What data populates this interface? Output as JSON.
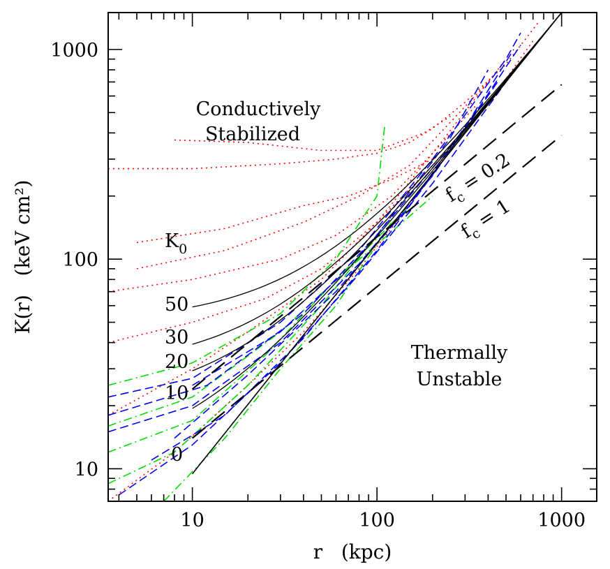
{
  "chart_data": {
    "type": "line",
    "xlabel": "r   (kpc)",
    "ylabel": "K(r)   (keV cm²)",
    "xscale": "log",
    "yscale": "log",
    "xlim": [
      3.5,
      1550
    ],
    "ylim": [
      7.0,
      1500
    ],
    "x_tick_labels": [
      {
        "value": 10,
        "label": "10"
      },
      {
        "value": 100,
        "label": "100"
      },
      {
        "value": 1000,
        "label": "1000"
      }
    ],
    "y_tick_labels": [
      {
        "value": 10,
        "label": "10"
      },
      {
        "value": 100,
        "label": "100"
      },
      {
        "value": 1000,
        "label": "1000"
      }
    ],
    "grid": false,
    "colors": {
      "profiles_red": "#ff0000",
      "profiles_green": "#00dd00",
      "profiles_blue": "#0000ee",
      "models": "#000000",
      "thresholds": "#000000"
    },
    "region_labels": [
      {
        "line1": "Conductively",
        "line2": "Stabilized"
      },
      {
        "line1": "Thermally",
        "line2": "Unstable"
      }
    ],
    "k0_header": {
      "main": "K",
      "sub": "0"
    },
    "model_curves": [
      {
        "label": "0",
        "K0": 0,
        "x": [
          10,
          1000
        ],
        "y": [
          9.5,
          1500
        ]
      },
      {
        "label": "10",
        "K0": 10,
        "x": [
          10,
          1000
        ],
        "y": [
          19.5,
          1500
        ]
      },
      {
        "label": "20",
        "K0": 20,
        "x": [
          10,
          1000
        ],
        "y": [
          29.5,
          1500
        ]
      },
      {
        "label": "30",
        "K0": 30,
        "x": [
          10,
          1000
        ],
        "y": [
          39.5,
          1500
        ]
      },
      {
        "label": "50",
        "K0": 50,
        "x": [
          10,
          1000
        ],
        "y": [
          59.5,
          1500
        ]
      }
    ],
    "threshold_lines": [
      {
        "label_main": "f",
        "label_sub": "c",
        "label_rest": " = 0.2",
        "x": [
          10,
          1000
        ],
        "y": [
          24,
          680
        ]
      },
      {
        "label_main": "f",
        "label_sub": "c",
        "label_rest": " = 1",
        "x": [
          10,
          1000
        ],
        "y": [
          14,
          390
        ]
      }
    ],
    "series": [
      {
        "color": "red",
        "style": "dotted",
        "x": [
          3.5,
          10,
          30,
          60,
          100,
          150,
          200,
          300,
          500,
          750
        ],
        "y": [
          270,
          270,
          285,
          300,
          320,
          360,
          420,
          560,
          850,
          1350
        ]
      },
      {
        "color": "red",
        "style": "dotted",
        "x": [
          8,
          20,
          50,
          100,
          180,
          250
        ],
        "y": [
          370,
          360,
          330,
          330,
          400,
          480
        ]
      },
      {
        "color": "red",
        "style": "dotted",
        "x": [
          5,
          15,
          40,
          80,
          150,
          250,
          400
        ],
        "y": [
          90,
          110,
          150,
          200,
          280,
          450,
          700
        ]
      },
      {
        "color": "red",
        "style": "dotted",
        "x": [
          3.5,
          10,
          30,
          60,
          120,
          200,
          350
        ],
        "y": [
          70,
          80,
          100,
          130,
          200,
          320,
          550
        ]
      },
      {
        "color": "red",
        "style": "dotted",
        "x": [
          3.5,
          10,
          25,
          50,
          100,
          200,
          400,
          700
        ],
        "y": [
          40,
          50,
          65,
          90,
          150,
          280,
          550,
          1100
        ]
      },
      {
        "color": "red",
        "style": "dotted",
        "x": [
          3.5,
          10,
          20,
          50,
          100,
          200,
          500
        ],
        "y": [
          18,
          30,
          45,
          80,
          150,
          320,
          900
        ]
      },
      {
        "color": "red",
        "style": "dotted",
        "x": [
          3.5,
          8,
          20,
          40,
          80,
          150,
          300
        ],
        "y": [
          7,
          12,
          25,
          45,
          90,
          180,
          420
        ]
      },
      {
        "color": "red",
        "style": "dotted",
        "x": [
          5,
          15,
          40,
          70,
          120,
          200
        ],
        "y": [
          120,
          140,
          180,
          200,
          240,
          300
        ]
      },
      {
        "color": "green",
        "style": "dashdot",
        "x": [
          3.5,
          10,
          30,
          60,
          100,
          110
        ],
        "y": [
          25,
          32,
          55,
          100,
          200,
          430
        ]
      },
      {
        "color": "green",
        "style": "dashdot",
        "x": [
          3.5,
          10,
          30,
          70,
          150,
          200
        ],
        "y": [
          16,
          22,
          45,
          90,
          160,
          200
        ]
      },
      {
        "color": "green",
        "style": "dashdot",
        "x": [
          3.5,
          10,
          25,
          60,
          150
        ],
        "y": [
          12,
          17,
          35,
          80,
          180
        ]
      },
      {
        "color": "green",
        "style": "dashdot",
        "x": [
          7,
          15,
          30,
          60,
          120
        ],
        "y": [
          7,
          14,
          30,
          60,
          150
        ]
      },
      {
        "color": "green",
        "style": "dashdot",
        "x": [
          3.5,
          8,
          20,
          50,
          100
        ],
        "y": [
          8.5,
          12,
          25,
          60,
          130
        ]
      },
      {
        "color": "blue",
        "style": "dashed",
        "x": [
          3.5,
          10,
          30,
          80,
          200,
          500,
          600
        ],
        "y": [
          22,
          27,
          50,
          110,
          300,
          900,
          1200
        ]
      },
      {
        "color": "blue",
        "style": "dashed",
        "x": [
          3.5,
          10,
          30,
          80,
          200,
          450
        ],
        "y": [
          15,
          20,
          40,
          95,
          250,
          700
        ]
      },
      {
        "color": "blue",
        "style": "dashed",
        "x": [
          4,
          10,
          30,
          80,
          200,
          500
        ],
        "y": [
          7.5,
          13,
          32,
          85,
          230,
          700
        ]
      },
      {
        "color": "blue",
        "style": "dashed",
        "x": [
          6,
          15,
          40,
          100,
          250,
          550
        ],
        "y": [
          11,
          18,
          42,
          110,
          330,
          1000
        ]
      },
      {
        "color": "blue",
        "style": "dashed",
        "x": [
          10,
          30,
          70,
          150,
          300,
          600
        ],
        "y": [
          25,
          45,
          90,
          200,
          420,
          1050
        ]
      },
      {
        "color": "blue",
        "style": "dashed",
        "x": [
          3.5,
          12,
          40,
          100,
          250,
          400
        ],
        "y": [
          18,
          25,
          55,
          130,
          380,
          800
        ]
      },
      {
        "color": "blue",
        "style": "dashed",
        "x": [
          8,
          20,
          60,
          150,
          350
        ],
        "y": [
          14,
          28,
          70,
          180,
          520
        ]
      }
    ]
  }
}
